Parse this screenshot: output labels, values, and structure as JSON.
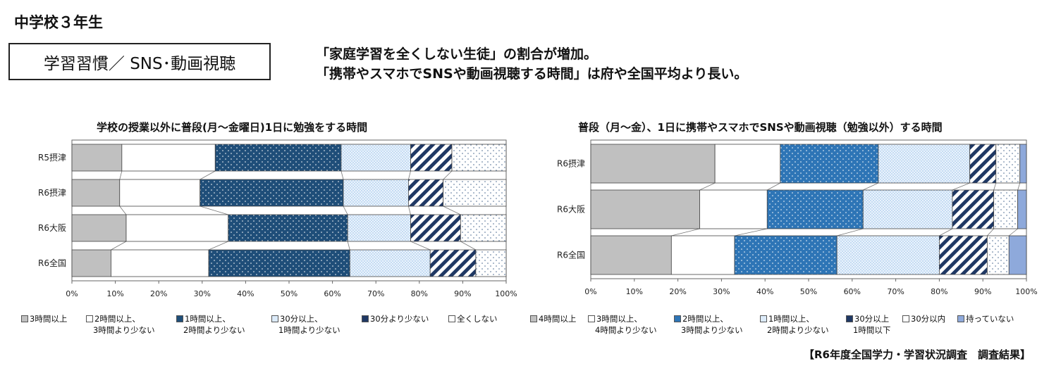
{
  "page": {
    "title": "中学校３年生",
    "topic": "学習習慣／ SNS･動画視聴",
    "summary": [
      "「家庭学習を全くしない生徒」の割合が増加。",
      "「携帯やスマホでSNSや動画視聴する時間」は府や全国平均より長い。"
    ],
    "source": "【R6年度全国学力・学習状況調査　調査結果】"
  },
  "chart_data": [
    {
      "type": "bar",
      "stacked": true,
      "orientation": "horizontal",
      "title": "学校の授業以外に普段(月～金曜日)1日に勉強をする時間",
      "categories": [
        "R5摂津",
        "R6摂津",
        "R6大阪",
        "R6全国"
      ],
      "xlim": [
        0,
        100
      ],
      "xticks": [
        "0%",
        "10%",
        "20%",
        "30%",
        "40%",
        "50%",
        "60%",
        "70%",
        "80%",
        "90%",
        "100%"
      ],
      "series": [
        {
          "name": "3時間以上",
          "legend": [
            "3時間以上"
          ],
          "values": [
            11.5,
            11,
            12.5,
            9
          ],
          "pattern": "gray",
          "color": "#c0c0c0"
        },
        {
          "name": "2時間以上、3時間より少ない",
          "legend": [
            "2時間以上、",
            "3時間より少ない"
          ],
          "values": [
            21.5,
            18.5,
            23.5,
            22.5
          ],
          "pattern": "white",
          "color": "#ffffff"
        },
        {
          "name": "1時間以上、2時間より少ない",
          "legend": [
            "1時間以上、",
            "2時間より少ない"
          ],
          "values": [
            29,
            33,
            27.5,
            32.5
          ],
          "pattern": "navydots",
          "color": "#1f4e79"
        },
        {
          "name": "30分以上、1時間より少ない",
          "legend": [
            "30分以上、",
            "1時間より少ない"
          ],
          "values": [
            16,
            15,
            14.5,
            18.5
          ],
          "pattern": "lightdots",
          "color": "#dcebfa"
        },
        {
          "name": "30分より少ない",
          "legend": [
            "30分より少ない"
          ],
          "values": [
            9.5,
            8,
            11.5,
            10.5
          ],
          "pattern": "navystripes",
          "color": "#1f3864"
        },
        {
          "name": "全くしない",
          "legend": [
            "全くしない"
          ],
          "values": [
            12.5,
            14.5,
            10.5,
            7
          ],
          "pattern": "whitedots",
          "color": "#ffffff"
        }
      ]
    },
    {
      "type": "bar",
      "stacked": true,
      "orientation": "horizontal",
      "title": "普段（月～金）、1日に携帯やスマホでSNSや動画視聴（勉強以外）する時間",
      "categories": [
        "R6摂津",
        "R6大阪",
        "R6全国"
      ],
      "xlim": [
        0,
        100
      ],
      "xticks": [
        "0%",
        "10%",
        "20%",
        "30%",
        "40%",
        "50%",
        "60%",
        "70%",
        "80%",
        "90%",
        "100%"
      ],
      "series": [
        {
          "name": "4時間以上",
          "legend": [
            "4時間以上"
          ],
          "values": [
            28.5,
            25,
            18.5
          ],
          "pattern": "gray",
          "color": "#c0c0c0"
        },
        {
          "name": "3時間以上、4時間より少ない",
          "legend": [
            "3時間以上、",
            "4時間より少ない"
          ],
          "values": [
            15,
            15.5,
            14.5
          ],
          "pattern": "white",
          "color": "#ffffff"
        },
        {
          "name": "2時間以上、3時間より少ない",
          "legend": [
            "2時間以上、",
            "3時間より少ない"
          ],
          "values": [
            22.5,
            22,
            23.5
          ],
          "pattern": "bluedots",
          "color": "#2e75b6"
        },
        {
          "name": "1時間以上、2時間より少ない",
          "legend": [
            "1時間以上、",
            "2時間より少ない"
          ],
          "values": [
            21,
            20.5,
            23.5
          ],
          "pattern": "lightdots",
          "color": "#dcebfa"
        },
        {
          "name": "30分以上1時間以下",
          "legend": [
            "30分以上",
            "1時間以下"
          ],
          "values": [
            6,
            9.5,
            11
          ],
          "pattern": "navystripes",
          "color": "#1f3864"
        },
        {
          "name": "30分以内",
          "legend": [
            "30分以内"
          ],
          "values": [
            5.5,
            5.5,
            5
          ],
          "pattern": "whitedots",
          "color": "#ffffff"
        },
        {
          "name": "持っていない",
          "legend": [
            "持っていない"
          ],
          "values": [
            1.5,
            2,
            4
          ],
          "pattern": "lightblue",
          "color": "#8ea9db"
        }
      ]
    }
  ]
}
